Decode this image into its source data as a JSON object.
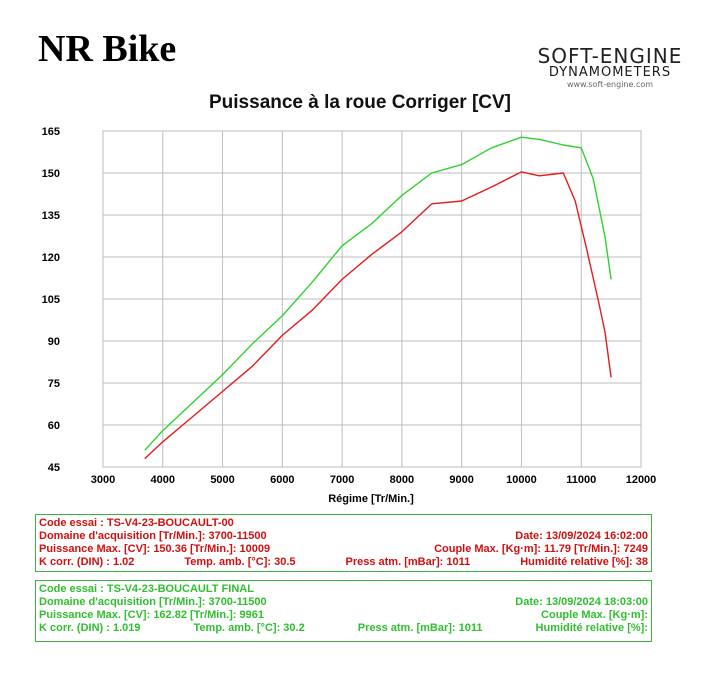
{
  "header": {
    "title": "NR Bike",
    "logo_line1": "SOFT-ENGINE",
    "logo_line2": "DYNAMOMETERS",
    "logo_line3": "www.soft-engine.com"
  },
  "colors": {
    "run1": "#e31b1b",
    "run2": "#2fd12f",
    "grid": "#bdbdbd",
    "panel_border": "#3cb043"
  },
  "chart_data": {
    "type": "line",
    "title": "Puissance à la roue Corriger [CV]",
    "xlabel": "Régime [Tr/Min.]",
    "ylabel": "",
    "xlim": [
      3000,
      12000
    ],
    "ylim": [
      45,
      165
    ],
    "xticks": [
      3000,
      4000,
      5000,
      6000,
      7000,
      8000,
      9000,
      10000,
      11000,
      12000
    ],
    "yticks": [
      45,
      60,
      75,
      90,
      105,
      120,
      135,
      150,
      165
    ],
    "grid": true,
    "series": [
      {
        "color": "red",
        "points": [
          [
            3700,
            48
          ],
          [
            4000,
            54
          ],
          [
            4500,
            63
          ],
          [
            5000,
            72
          ],
          [
            5500,
            81
          ],
          [
            6000,
            92
          ],
          [
            6500,
            101
          ],
          [
            7000,
            112
          ],
          [
            7500,
            121
          ],
          [
            8000,
            129
          ],
          [
            8500,
            139
          ],
          [
            9000,
            140
          ],
          [
            9500,
            145
          ],
          [
            10000,
            150.4
          ],
          [
            10300,
            149
          ],
          [
            10700,
            150
          ],
          [
            10900,
            140
          ],
          [
            11100,
            122
          ],
          [
            11300,
            103
          ],
          [
            11400,
            93
          ],
          [
            11500,
            77
          ]
        ]
      },
      {
        "color": "green",
        "points": [
          [
            3700,
            51
          ],
          [
            4000,
            58
          ],
          [
            4500,
            68
          ],
          [
            5000,
            78
          ],
          [
            5500,
            89
          ],
          [
            6000,
            99
          ],
          [
            6500,
            111
          ],
          [
            7000,
            124
          ],
          [
            7500,
            132
          ],
          [
            8000,
            142
          ],
          [
            8500,
            150
          ],
          [
            9000,
            153
          ],
          [
            9500,
            159
          ],
          [
            10000,
            162.8
          ],
          [
            10300,
            162
          ],
          [
            10700,
            160
          ],
          [
            11000,
            159
          ],
          [
            11200,
            148
          ],
          [
            11400,
            127
          ],
          [
            11500,
            112
          ]
        ]
      }
    ]
  },
  "run1": {
    "code": "Code essai : TS-V4-23-BOUCAULT-00",
    "domain": "Domaine d'acquisition [Tr/Min.]: 3700-11500",
    "date": "Date: 13/09/2024   16:02:00",
    "power": "Puissance Max. [CV]: 150.36  [Tr/Min.]: 10009",
    "torque": "Couple Max. [Kg·m]: 11.79  [Tr/Min.]: 7249",
    "kcorr": "K corr. (DIN) : 1.02",
    "temp": "Temp. amb. [°C]: 30.5",
    "press": "Press atm. [mBar]: 1011",
    "humidity": "Humidité relative [%]: 38"
  },
  "run2": {
    "code": "Code essai : TS-V4-23-BOUCAULT FINAL",
    "domain": "Domaine d'acquisition [Tr/Min.]: 3700-11500",
    "date": "Date: 13/09/2024   18:03:00",
    "power": "Puissance Max. [CV]: 162.82  [Tr/Min.]: 9961",
    "torque": "Couple Max. [Kg·m]:",
    "kcorr": "K corr. (DIN) : 1.019",
    "temp": "Temp. amb. [°C]: 30.2",
    "press": "Press atm. [mBar]: 1011",
    "humidity": "Humidité relative [%]:"
  }
}
